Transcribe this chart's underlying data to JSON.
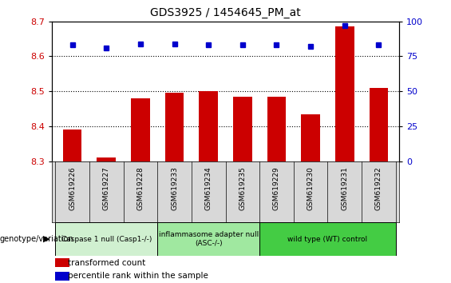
{
  "title": "GDS3925 / 1454645_PM_at",
  "samples": [
    "GSM619226",
    "GSM619227",
    "GSM619228",
    "GSM619233",
    "GSM619234",
    "GSM619235",
    "GSM619229",
    "GSM619230",
    "GSM619231",
    "GSM619232"
  ],
  "bar_values": [
    8.39,
    8.31,
    8.48,
    8.495,
    8.5,
    8.485,
    8.485,
    8.435,
    8.685,
    8.51
  ],
  "percentile_values": [
    83,
    81,
    84,
    84,
    83,
    83,
    83,
    82,
    97,
    83
  ],
  "bar_color": "#cc0000",
  "dot_color": "#0000cc",
  "ylim_left": [
    8.3,
    8.7
  ],
  "ylim_right": [
    0,
    100
  ],
  "yticks_left": [
    8.3,
    8.4,
    8.5,
    8.6,
    8.7
  ],
  "yticks_right": [
    0,
    25,
    50,
    75,
    100
  ],
  "groups": [
    {
      "label": "Caspase 1 null (Casp1-/-)",
      "start": 0,
      "end": 3,
      "color": "#d0f0d0"
    },
    {
      "label": "inflammasome adapter null\n(ASC-/-)",
      "start": 3,
      "end": 6,
      "color": "#a0e8a0"
    },
    {
      "label": "wild type (WT) control",
      "start": 6,
      "end": 10,
      "color": "#44cc44"
    }
  ],
  "legend_bar_label": "transformed count",
  "legend_dot_label": "percentile rank within the sample",
  "genotype_label": "genotype/variation",
  "gridline_color": "#000000",
  "plot_bg_color": "#ffffff",
  "tick_label_color_left": "#cc0000",
  "tick_label_color_right": "#0000cc",
  "bar_baseline": 8.3,
  "sample_box_color": "#d8d8d8",
  "title_fontsize": 10
}
